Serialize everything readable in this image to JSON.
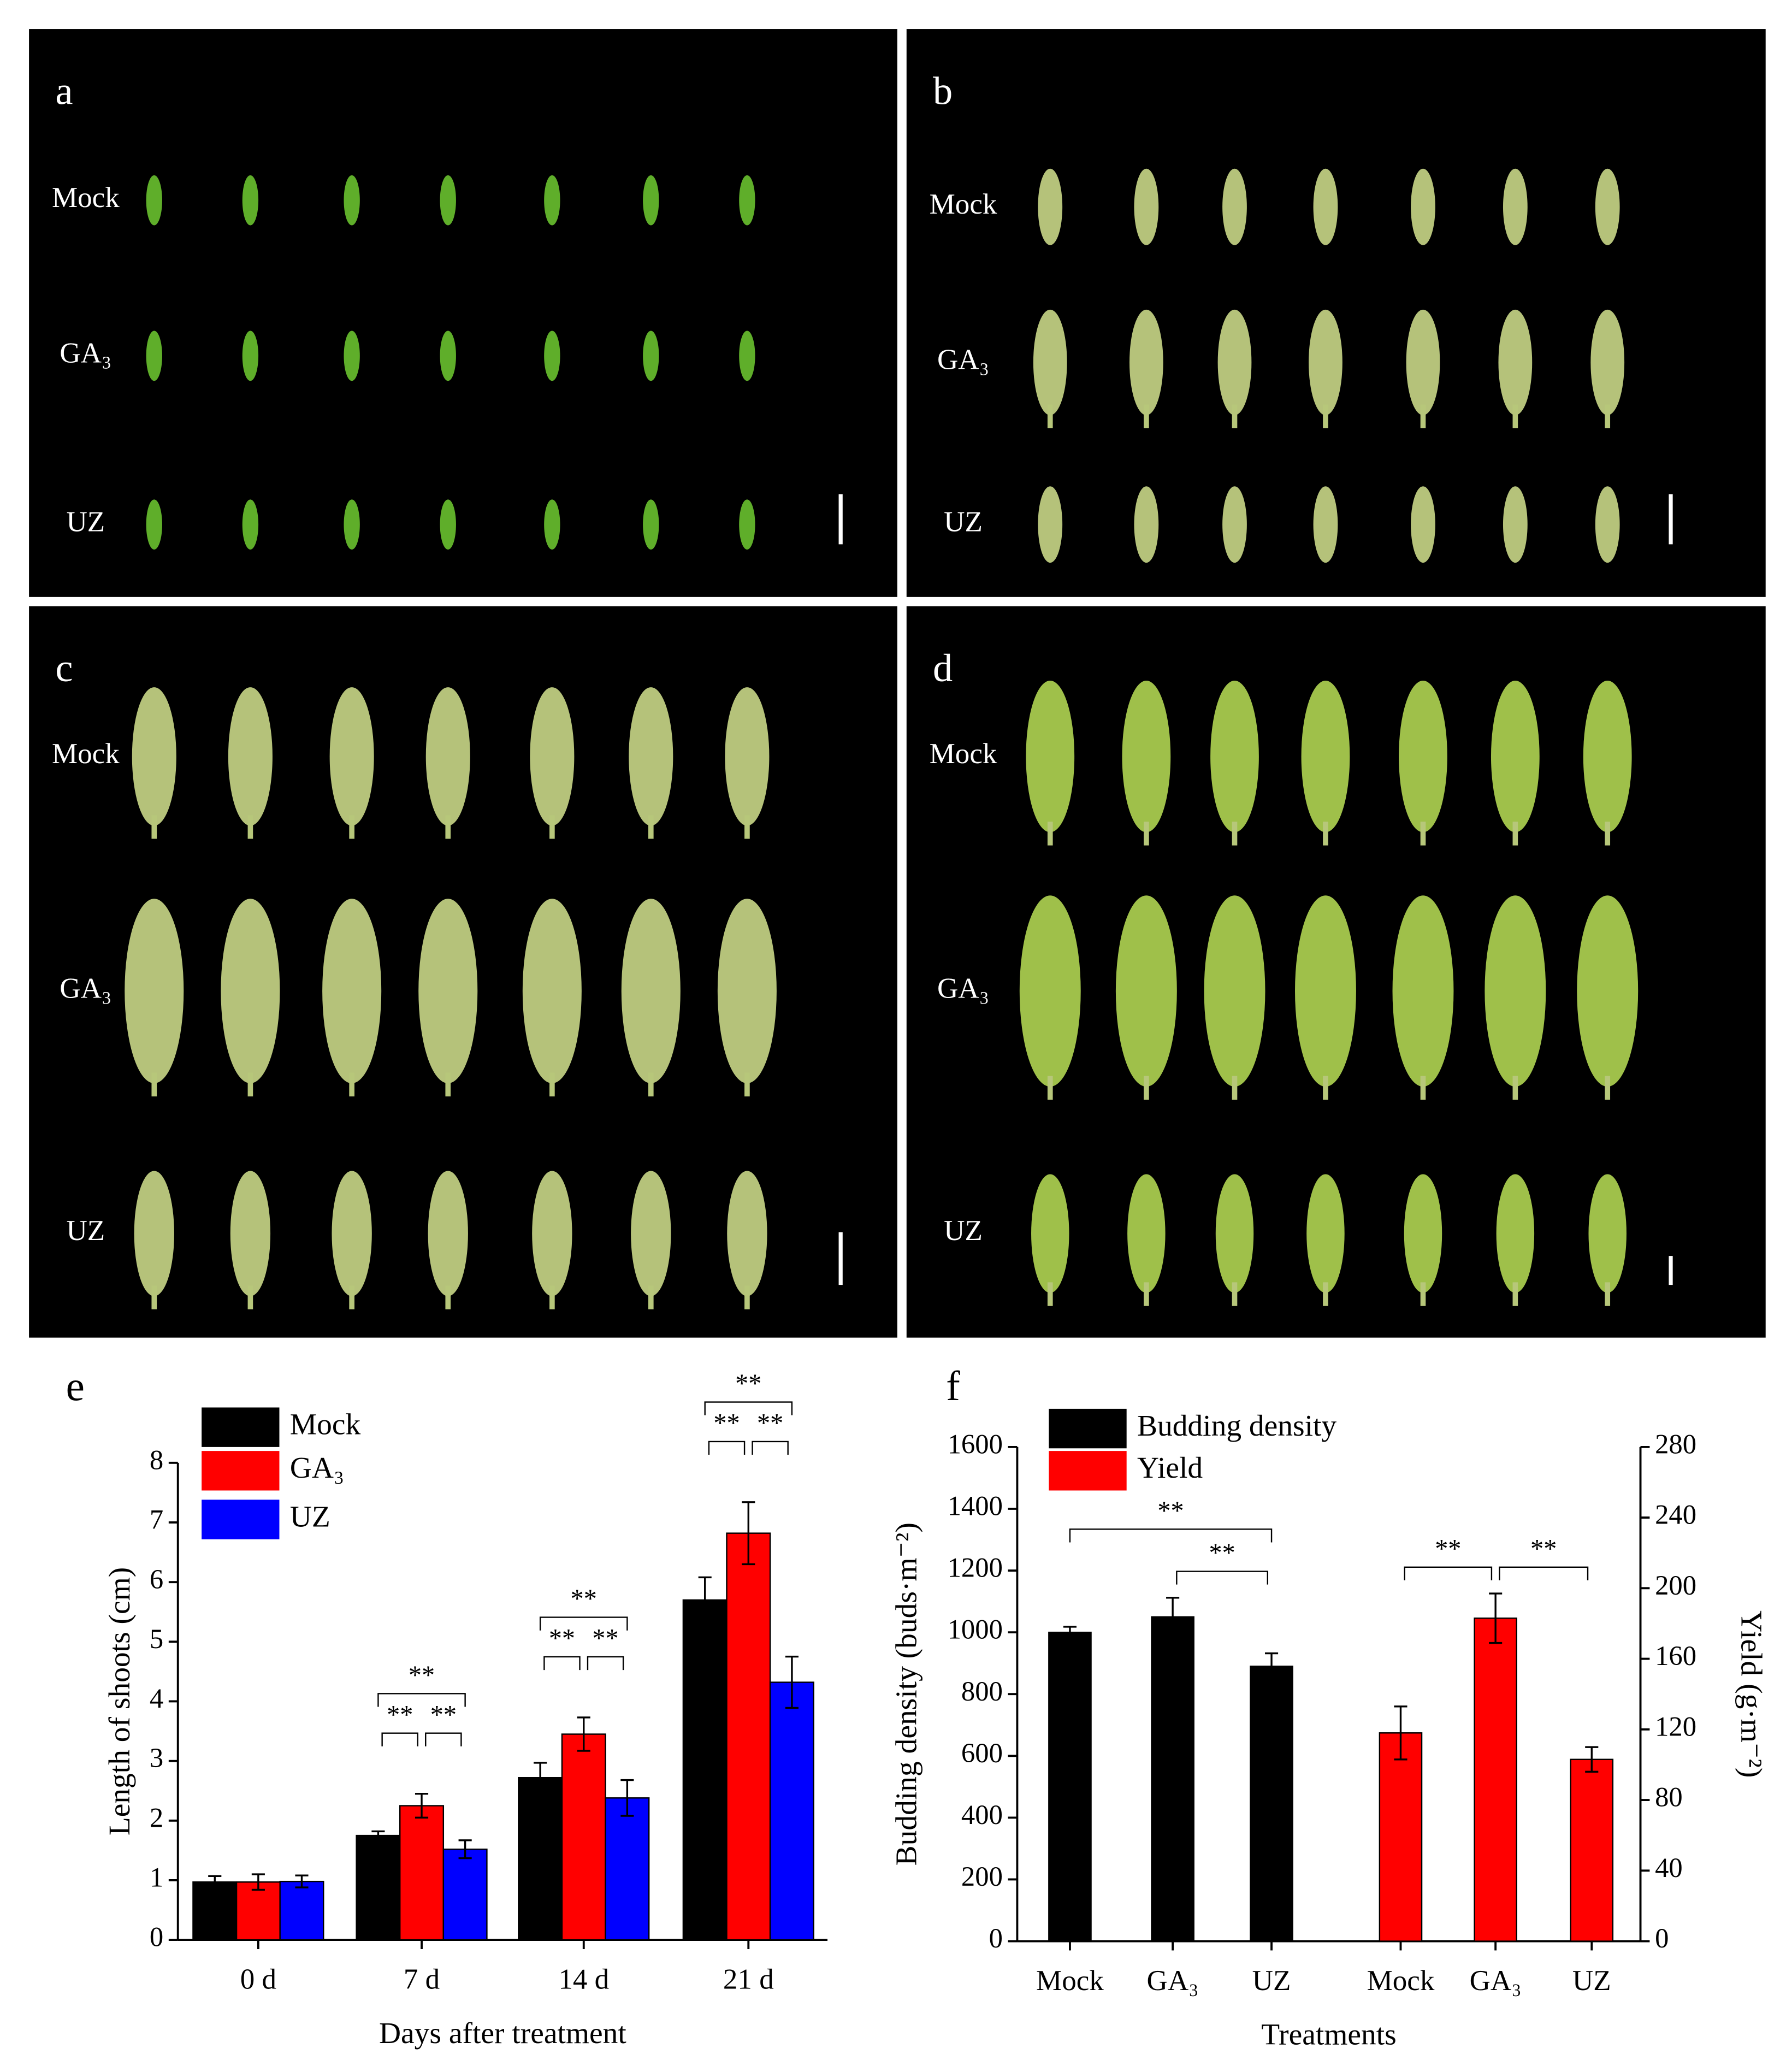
{
  "panels": [
    {
      "letter": "a",
      "rows": [
        "Mock",
        "GA₃",
        "UZ"
      ]
    },
    {
      "letter": "b",
      "rows": [
        "Mock",
        "GA₃",
        "UZ"
      ]
    },
    {
      "letter": "c",
      "rows": [
        "Mock",
        "GA₃",
        "UZ"
      ]
    },
    {
      "letter": "d",
      "rows": [
        "Mock",
        "GA₃",
        "UZ"
      ]
    }
  ],
  "chart_data": [
    {
      "type": "bar",
      "letter": "e",
      "categories": [
        "0 d",
        "7 d",
        "14 d",
        "21 d"
      ],
      "series": [
        {
          "name": "Mock",
          "color": "#000000",
          "values": [
            0.97,
            1.75,
            2.72,
            5.7
          ],
          "errors": [
            0.1,
            0.07,
            0.25,
            0.38
          ]
        },
        {
          "name": "GA₃",
          "color": "#ff0000",
          "values": [
            0.97,
            2.25,
            3.45,
            6.82
          ],
          "errors": [
            0.13,
            0.2,
            0.28,
            0.52
          ]
        },
        {
          "name": "UZ",
          "color": "#0000ff",
          "values": [
            0.98,
            1.52,
            2.38,
            4.32
          ],
          "errors": [
            0.1,
            0.15,
            0.3,
            0.43
          ]
        }
      ],
      "ylim": [
        0,
        8
      ],
      "yticks": [
        0,
        1,
        2,
        3,
        4,
        5,
        6,
        7,
        8
      ],
      "ylabel": "Length of shoots (cm)",
      "xlabel": "Days after treatment",
      "significance": [
        {
          "category": "7 d",
          "pair": [
            "Mock",
            "GA₃"
          ],
          "label": "**"
        },
        {
          "category": "7 d",
          "pair": [
            "GA₃",
            "UZ"
          ],
          "label": "**"
        },
        {
          "category": "7 d",
          "pair": [
            "Mock",
            "UZ"
          ],
          "label": "**"
        },
        {
          "category": "14 d",
          "pair": [
            "Mock",
            "GA₃"
          ],
          "label": "**"
        },
        {
          "category": "14 d",
          "pair": [
            "GA₃",
            "UZ"
          ],
          "label": "**"
        },
        {
          "category": "14 d",
          "pair": [
            "Mock",
            "UZ"
          ],
          "label": "**"
        },
        {
          "category": "21 d",
          "pair": [
            "Mock",
            "GA₃"
          ],
          "label": "**"
        },
        {
          "category": "21 d",
          "pair": [
            "GA₃",
            "UZ"
          ],
          "label": "**"
        },
        {
          "category": "21 d",
          "pair": [
            "Mock",
            "UZ"
          ],
          "label": "**"
        }
      ]
    },
    {
      "type": "bar",
      "letter": "f",
      "categories": [
        "Mock",
        "GA₃",
        "UZ",
        "Mock",
        "GA₃",
        "UZ"
      ],
      "series": [
        {
          "name": "Budding density",
          "color": "#000000",
          "values": [
            1000,
            1050,
            890,
            null,
            null,
            null
          ],
          "errors": [
            18,
            62,
            42,
            null,
            null,
            null
          ]
        },
        {
          "name": "Yield",
          "color": "#ff0000",
          "axis": "y2",
          "values": [
            null,
            null,
            null,
            118,
            183,
            103
          ],
          "errors": [
            null,
            null,
            null,
            15,
            14,
            7
          ]
        }
      ],
      "ylim": [
        0,
        1600
      ],
      "yticks": [
        0,
        200,
        400,
        600,
        800,
        1000,
        1200,
        1400,
        1600
      ],
      "y2lim": [
        0,
        280
      ],
      "y2ticks": [
        0,
        40,
        80,
        120,
        160,
        200,
        240,
        280
      ],
      "ylabel": "Budding density (buds·m⁻²)",
      "y2label": "Yield (g·m⁻²)",
      "xlabel": "Treatments",
      "significance": [
        {
          "series": "Budding density",
          "pair": [
            1,
            2
          ],
          "label": "**"
        },
        {
          "series": "Budding density",
          "pair": [
            0,
            2
          ],
          "label": "**"
        },
        {
          "series": "Yield",
          "pair": [
            3,
            4
          ],
          "label": "**"
        },
        {
          "series": "Yield",
          "pair": [
            4,
            5
          ],
          "label": "**"
        }
      ]
    }
  ]
}
